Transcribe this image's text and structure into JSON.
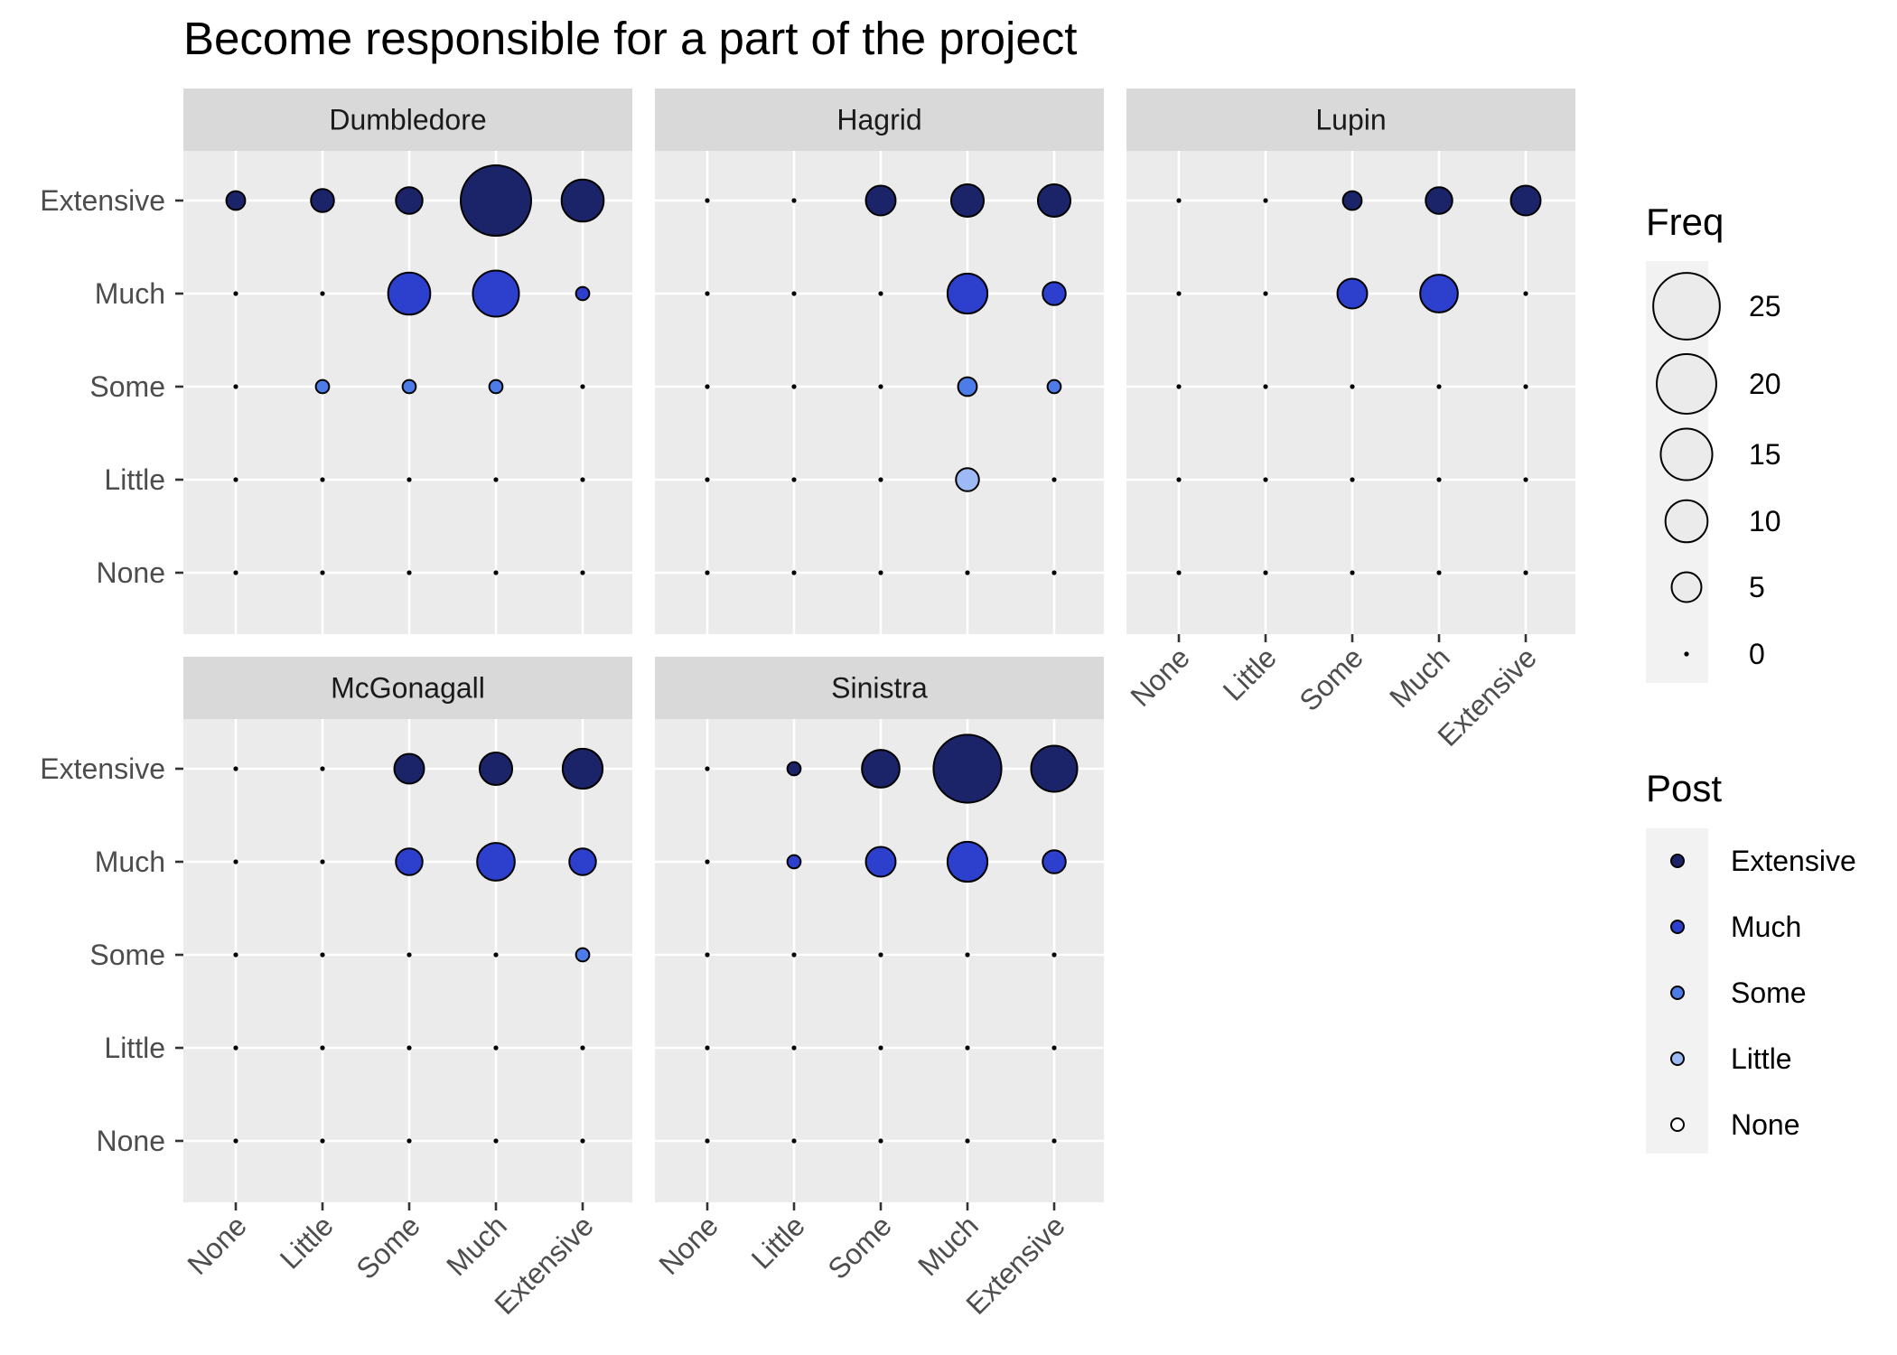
{
  "title": "Become responsible for a part of the project",
  "chart_data": {
    "type": "scatter",
    "title": "Become responsible for a part of the project",
    "xlabel": "",
    "ylabel": "",
    "x_categories": [
      "None",
      "Little",
      "Some",
      "Much",
      "Extensive"
    ],
    "y_categories": [
      "None",
      "Little",
      "Some",
      "Much",
      "Extensive"
    ],
    "size_legend": {
      "title": "Freq",
      "breaks": [
        0,
        5,
        10,
        15,
        20,
        25
      ]
    },
    "color_legend": {
      "title": "Post",
      "levels": [
        "Extensive",
        "Much",
        "Some",
        "Little",
        "None"
      ],
      "colors": {
        "Extensive": "#1b2469",
        "Much": "#2c3fcd",
        "Some": "#4d7be8",
        "Little": "#9dbaf5",
        "None": "#ffffff"
      }
    },
    "panels": [
      {
        "name": "Dumbledore",
        "points": [
          {
            "x": "None",
            "y": "Extensive",
            "freq": 2
          },
          {
            "x": "Little",
            "y": "Extensive",
            "freq": 3
          },
          {
            "x": "Some",
            "y": "Extensive",
            "freq": 4
          },
          {
            "x": "Much",
            "y": "Extensive",
            "freq": 28
          },
          {
            "x": "Extensive",
            "y": "Extensive",
            "freq": 10
          },
          {
            "x": "Some",
            "y": "Much",
            "freq": 10
          },
          {
            "x": "Much",
            "y": "Much",
            "freq": 12
          },
          {
            "x": "Extensive",
            "y": "Much",
            "freq": 1
          },
          {
            "x": "Little",
            "y": "Some",
            "freq": 1
          },
          {
            "x": "Some",
            "y": "Some",
            "freq": 1
          },
          {
            "x": "Much",
            "y": "Some",
            "freq": 1
          }
        ]
      },
      {
        "name": "Hagrid",
        "points": [
          {
            "x": "Some",
            "y": "Extensive",
            "freq": 5
          },
          {
            "x": "Much",
            "y": "Extensive",
            "freq": 6
          },
          {
            "x": "Extensive",
            "y": "Extensive",
            "freq": 6
          },
          {
            "x": "Much",
            "y": "Much",
            "freq": 9
          },
          {
            "x": "Extensive",
            "y": "Much",
            "freq": 3
          },
          {
            "x": "Much",
            "y": "Some",
            "freq": 2
          },
          {
            "x": "Extensive",
            "y": "Some",
            "freq": 1
          },
          {
            "x": "Much",
            "y": "Little",
            "freq": 3
          }
        ]
      },
      {
        "name": "Lupin",
        "points": [
          {
            "x": "Some",
            "y": "Extensive",
            "freq": 2
          },
          {
            "x": "Much",
            "y": "Extensive",
            "freq": 4
          },
          {
            "x": "Extensive",
            "y": "Extensive",
            "freq": 5
          },
          {
            "x": "Some",
            "y": "Much",
            "freq": 5
          },
          {
            "x": "Much",
            "y": "Much",
            "freq": 8
          }
        ]
      },
      {
        "name": "McGonagall",
        "points": [
          {
            "x": "Some",
            "y": "Extensive",
            "freq": 5
          },
          {
            "x": "Much",
            "y": "Extensive",
            "freq": 6
          },
          {
            "x": "Extensive",
            "y": "Extensive",
            "freq": 9
          },
          {
            "x": "Some",
            "y": "Much",
            "freq": 4
          },
          {
            "x": "Much",
            "y": "Much",
            "freq": 8
          },
          {
            "x": "Extensive",
            "y": "Much",
            "freq": 4
          },
          {
            "x": "Extensive",
            "y": "Some",
            "freq": 1
          }
        ]
      },
      {
        "name": "Sinistra",
        "points": [
          {
            "x": "Little",
            "y": "Extensive",
            "freq": 1
          },
          {
            "x": "Some",
            "y": "Extensive",
            "freq": 8
          },
          {
            "x": "Much",
            "y": "Extensive",
            "freq": 26
          },
          {
            "x": "Extensive",
            "y": "Extensive",
            "freq": 12
          },
          {
            "x": "Little",
            "y": "Much",
            "freq": 1
          },
          {
            "x": "Some",
            "y": "Much",
            "freq": 5
          },
          {
            "x": "Much",
            "y": "Much",
            "freq": 9
          },
          {
            "x": "Extensive",
            "y": "Much",
            "freq": 3
          }
        ]
      }
    ],
    "grid": true,
    "legend_position": "right"
  }
}
